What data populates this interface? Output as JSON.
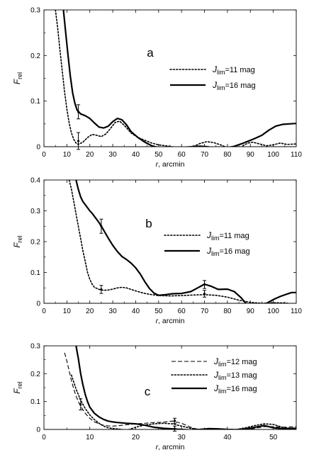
{
  "chart_data": [
    {
      "type": "line",
      "panel_label": "a",
      "ylabel": {
        "main": "F",
        "sub": "rel"
      },
      "xlabel": {
        "var": "r",
        "rest": ", arcmin"
      },
      "xlim": [
        0,
        110
      ],
      "ylim": [
        0,
        0.3
      ],
      "xticks": [
        0,
        10,
        20,
        30,
        40,
        50,
        60,
        70,
        80,
        90,
        100,
        110
      ],
      "yticks": [
        0,
        0.1,
        0.2,
        0.3
      ],
      "ytick_labels": [
        "0",
        "0.1",
        "0.2",
        "0.3"
      ],
      "legend_position": "center-right",
      "series": [
        {
          "legend": {
            "J": "J",
            "sub": "lim",
            "rest": "=11 mag"
          },
          "style": "dotted",
          "x": [
            5,
            6,
            7,
            8,
            9,
            10,
            11,
            12,
            13,
            14,
            15,
            17,
            19,
            21,
            23,
            25,
            27,
            29,
            31,
            33,
            35,
            38,
            41,
            44,
            47,
            50,
            53,
            56,
            59,
            62,
            65,
            68,
            71,
            74,
            77,
            79,
            81,
            83,
            85,
            87,
            89,
            91,
            94,
            97,
            100,
            103,
            106,
            110
          ],
          "y": [
            0.3,
            0.26,
            0.21,
            0.165,
            0.12,
            0.082,
            0.052,
            0.03,
            0.016,
            0.008,
            0.005,
            0.01,
            0.02,
            0.027,
            0.025,
            0.022,
            0.028,
            0.04,
            0.053,
            0.056,
            0.047,
            0.03,
            0.02,
            0.014,
            0.008,
            0.004,
            0.002,
            0.0,
            -0.003,
            -0.002,
            0.0,
            0.007,
            0.011,
            0.009,
            0.004,
            0.0,
            -0.006,
            -0.008,
            -0.004,
            0.003,
            0.008,
            0.01,
            0.006,
            0.002,
            0.004,
            0.008,
            0.005,
            0.006
          ]
        },
        {
          "legend": {
            "J": "J",
            "sub": "lim",
            "rest": "=16 mag"
          },
          "style": "solid",
          "x": [
            8.5,
            9.5,
            10.5,
            11.5,
            12.5,
            13.5,
            14.5,
            16,
            18,
            20,
            22,
            24,
            26,
            28,
            30,
            32,
            34,
            36,
            38,
            41,
            44,
            47,
            50,
            53,
            56,
            59,
            62,
            65,
            68,
            71,
            74,
            77,
            80,
            83,
            86,
            89,
            92,
            95,
            98,
            101,
            104,
            107,
            110
          ],
          "y": [
            0.3,
            0.25,
            0.2,
            0.155,
            0.118,
            0.095,
            0.08,
            0.072,
            0.068,
            0.062,
            0.052,
            0.043,
            0.041,
            0.045,
            0.055,
            0.062,
            0.059,
            0.048,
            0.033,
            0.02,
            0.01,
            0.002,
            -0.002,
            -0.004,
            -0.003,
            -0.002,
            -0.001,
            0.0,
            0.001,
            0.0,
            -0.002,
            -0.003,
            -0.002,
            0.001,
            0.006,
            0.012,
            0.018,
            0.025,
            0.036,
            0.045,
            0.049,
            0.05,
            0.051
          ]
        }
      ],
      "error_bars": [
        {
          "x": 15,
          "y": 0.0765,
          "low": 0.061,
          "high": 0.092
        },
        {
          "x": 15,
          "y": 0.0125,
          "low": -0.006,
          "high": 0.031
        }
      ]
    },
    {
      "type": "line",
      "panel_label": "b",
      "ylabel": {
        "main": "F",
        "sub": "rel"
      },
      "xlabel": {
        "var": "r",
        "rest": ", arcmin"
      },
      "xlim": [
        0,
        110
      ],
      "ylim": [
        0,
        0.4
      ],
      "xticks": [
        0,
        10,
        20,
        30,
        40,
        50,
        60,
        70,
        80,
        90,
        100,
        110
      ],
      "yticks": [
        0,
        0.1,
        0.2,
        0.3,
        0.4
      ],
      "ytick_labels": [
        "0",
        "0.1",
        "0.2",
        "0.3",
        "0.4"
      ],
      "legend_position": "center-right",
      "series": [
        {
          "legend": {
            "J": "J",
            "sub": "lim",
            "rest": "=11 mag"
          },
          "style": "dotted",
          "x": [
            11,
            12,
            13,
            14,
            15,
            16,
            17,
            18,
            19,
            20,
            21,
            22,
            24,
            26,
            28,
            30,
            32,
            34,
            36,
            38,
            41,
            44,
            47,
            50,
            55,
            60,
            65,
            70,
            75,
            80,
            85,
            90,
            95,
            100,
            105,
            110
          ],
          "y": [
            0.4,
            0.37,
            0.33,
            0.29,
            0.25,
            0.21,
            0.17,
            0.135,
            0.1,
            0.078,
            0.062,
            0.052,
            0.045,
            0.042,
            0.043,
            0.046,
            0.05,
            0.052,
            0.05,
            0.045,
            0.038,
            0.032,
            0.028,
            0.025,
            0.024,
            0.025,
            0.027,
            0.028,
            0.026,
            0.02,
            0.01,
            0.003,
            0.0,
            0.002,
            0.001,
            -0.003
          ]
        },
        {
          "legend": {
            "J": "J",
            "sub": "lim",
            "rest": "=16 mag"
          },
          "style": "solid",
          "x": [
            14,
            15,
            16,
            17,
            18,
            19,
            20,
            21,
            22,
            24,
            26,
            28,
            30,
            32,
            34,
            36,
            38,
            40,
            42,
            44,
            46,
            48,
            50,
            53,
            56,
            60,
            64,
            67,
            70,
            73,
            76,
            80,
            83,
            86,
            88,
            90,
            92,
            94,
            96,
            98,
            100,
            103,
            106,
            108,
            110
          ],
          "y": [
            0.4,
            0.37,
            0.345,
            0.33,
            0.32,
            0.31,
            0.3,
            0.292,
            0.282,
            0.262,
            0.238,
            0.212,
            0.188,
            0.168,
            0.152,
            0.142,
            0.13,
            0.115,
            0.095,
            0.07,
            0.048,
            0.033,
            0.026,
            0.028,
            0.031,
            0.032,
            0.038,
            0.05,
            0.062,
            0.055,
            0.045,
            0.046,
            0.038,
            0.018,
            0.0,
            -0.015,
            -0.018,
            -0.012,
            -0.005,
            0.004,
            0.012,
            0.022,
            0.03,
            0.035,
            0.035
          ]
        }
      ],
      "error_bars": [
        {
          "x": 25,
          "y": 0.25,
          "low": 0.227,
          "high": 0.273
        },
        {
          "x": 25,
          "y": 0.045,
          "low": 0.032,
          "high": 0.058
        },
        {
          "x": 70,
          "y": 0.061,
          "low": 0.048,
          "high": 0.074
        },
        {
          "x": 70,
          "y": 0.031,
          "low": 0.02,
          "high": 0.042
        }
      ]
    },
    {
      "type": "line",
      "panel_label": "c",
      "ylabel": {
        "main": "F",
        "sub": "rel"
      },
      "xlabel": {
        "var": "r",
        "rest": ", arcmin"
      },
      "xlim": [
        0,
        55
      ],
      "ylim": [
        0,
        0.3
      ],
      "xticks": [
        0,
        10,
        20,
        30,
        40,
        50
      ],
      "yticks": [
        0,
        0.1,
        0.2,
        0.3
      ],
      "ytick_labels": [
        "0",
        "0.1",
        "0.2",
        "0.3"
      ],
      "legend_position": "top-right",
      "series": [
        {
          "legend": {
            "J": "J",
            "sub": "lim",
            "rest": "=12 mag"
          },
          "style": "dashed",
          "x": [
            4.5,
            5,
            5.5,
            6,
            6.5,
            7,
            7.5,
            8,
            9,
            10,
            11,
            12,
            13,
            14,
            15,
            16,
            18,
            20,
            22,
            24,
            26,
            28,
            30,
            32,
            34,
            36,
            38,
            40,
            42,
            44,
            46,
            48,
            50,
            52,
            55
          ],
          "y": [
            0.275,
            0.245,
            0.21,
            0.175,
            0.145,
            0.12,
            0.1,
            0.083,
            0.058,
            0.04,
            0.027,
            0.02,
            0.015,
            0.013,
            0.012,
            0.013,
            0.017,
            0.02,
            0.022,
            0.025,
            0.026,
            0.03,
            0.022,
            0.008,
            -0.002,
            -0.003,
            -0.002,
            0.0,
            -0.004,
            -0.002,
            0.004,
            0.01,
            0.01,
            0.008,
            0.01
          ]
        },
        {
          "legend": {
            "J": "J",
            "sub": "lim",
            "rest": "=13 mag"
          },
          "style": "dotted",
          "x": [
            6,
            7,
            8,
            9,
            10,
            11,
            12,
            13,
            14,
            15,
            16,
            17,
            18,
            19,
            20,
            22,
            24,
            26,
            28,
            30,
            32,
            34,
            36,
            38,
            40,
            42,
            44,
            46,
            48,
            50,
            52,
            55
          ],
          "y": [
            0.195,
            0.145,
            0.105,
            0.075,
            0.052,
            0.035,
            0.022,
            0.012,
            0.006,
            0.003,
            0.002,
            0.0,
            -0.003,
            0.002,
            0.008,
            0.016,
            0.02,
            0.022,
            0.02,
            0.012,
            0.004,
            0.0,
            0.0,
            -0.002,
            -0.004,
            0.0,
            0.006,
            0.014,
            0.02,
            0.018,
            0.008,
            0.0
          ]
        },
        {
          "legend": {
            "J": "J",
            "sub": "lim",
            "rest": "=16 mag"
          },
          "style": "solid",
          "x": [
            7,
            7.5,
            8,
            8.5,
            9,
            9.5,
            10,
            11,
            12,
            13,
            14,
            15,
            16,
            18,
            20,
            22,
            24,
            26,
            28,
            30,
            32,
            34,
            36,
            38,
            40,
            42,
            44,
            46,
            48,
            50,
            52,
            55
          ],
          "y": [
            0.3,
            0.255,
            0.2,
            0.16,
            0.125,
            0.1,
            0.08,
            0.058,
            0.045,
            0.036,
            0.03,
            0.027,
            0.025,
            0.022,
            0.02,
            0.015,
            0.008,
            0.004,
            0.002,
            0.0,
            -0.002,
            0.0,
            0.003,
            0.002,
            0.0,
            -0.001,
            0.002,
            0.008,
            0.014,
            0.006,
            0.003,
            0.004
          ]
        }
      ],
      "error_bars": [
        {
          "x": 8,
          "y": 0.09,
          "low": 0.07,
          "high": 0.11
        },
        {
          "x": 28.5,
          "y": 0.031,
          "low": 0.022,
          "high": 0.04
        },
        {
          "x": 28.5,
          "y": 0.003,
          "low": -0.006,
          "high": 0.012
        }
      ]
    }
  ]
}
